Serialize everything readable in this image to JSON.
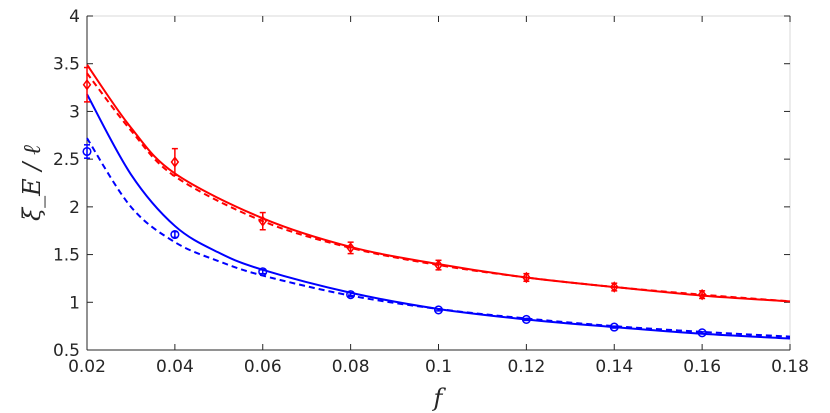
{
  "chart_data": {
    "type": "line",
    "xlabel": "f",
    "ylabel": "ξ_E / ℓ",
    "xlim": [
      0.02,
      0.18
    ],
    "ylim": [
      0.5,
      4
    ],
    "xticks": [
      0.02,
      0.04,
      0.06,
      0.08,
      0.1,
      0.12,
      0.14,
      0.16,
      0.18
    ],
    "xtick_labels": [
      "0.02",
      "0.04",
      "0.06",
      "0.08",
      "0.1",
      "0.12",
      "0.14",
      "0.16",
      "0.18"
    ],
    "yticks": [
      0.5,
      1,
      1.5,
      2,
      2.5,
      3,
      3.5,
      4
    ],
    "ytick_labels": [
      "0.5",
      "1",
      "1.5",
      "2",
      "2.5",
      "3",
      "3.5",
      "4"
    ],
    "grid": false,
    "legend": "none",
    "series": [
      {
        "color": "#ff0000",
        "marker": "diamond",
        "points": [
          {
            "x": 0.02,
            "y": 3.28,
            "err": 0.18
          },
          {
            "x": 0.04,
            "y": 2.47,
            "err": 0.14
          },
          {
            "x": 0.06,
            "y": 1.85,
            "err": 0.09
          },
          {
            "x": 0.08,
            "y": 1.57,
            "err": 0.06
          },
          {
            "x": 0.1,
            "y": 1.39,
            "err": 0.05
          },
          {
            "x": 0.12,
            "y": 1.26,
            "err": 0.04
          },
          {
            "x": 0.14,
            "y": 1.16,
            "err": 0.04
          },
          {
            "x": 0.16,
            "y": 1.08,
            "err": 0.04
          }
        ],
        "solid_fit": [
          [
            0.02,
            3.49
          ],
          [
            0.03,
            2.83
          ],
          [
            0.04,
            2.35
          ],
          [
            0.06,
            1.88
          ],
          [
            0.08,
            1.58
          ],
          [
            0.1,
            1.4
          ],
          [
            0.12,
            1.26
          ],
          [
            0.14,
            1.16
          ],
          [
            0.16,
            1.07
          ],
          [
            0.18,
            1.01
          ]
        ],
        "dashed_fit": [
          [
            0.02,
            3.4
          ],
          [
            0.03,
            2.8
          ],
          [
            0.04,
            2.32
          ],
          [
            0.06,
            1.85
          ],
          [
            0.08,
            1.57
          ],
          [
            0.1,
            1.39
          ],
          [
            0.12,
            1.26
          ],
          [
            0.14,
            1.16
          ],
          [
            0.16,
            1.08
          ],
          [
            0.18,
            1.01
          ]
        ]
      },
      {
        "color": "#0000ff",
        "marker": "circle",
        "points": [
          {
            "x": 0.02,
            "y": 2.58,
            "err": 0.07
          },
          {
            "x": 0.04,
            "y": 1.71,
            "err": 0.03
          },
          {
            "x": 0.06,
            "y": 1.32,
            "err": 0.02
          },
          {
            "x": 0.08,
            "y": 1.08,
            "err": 0.02
          },
          {
            "x": 0.1,
            "y": 0.92,
            "err": 0.01
          },
          {
            "x": 0.12,
            "y": 0.82,
            "err": 0.01
          },
          {
            "x": 0.14,
            "y": 0.74,
            "err": 0.01
          },
          {
            "x": 0.16,
            "y": 0.68,
            "err": 0.01
          }
        ],
        "solid_fit": [
          [
            0.02,
            3.18
          ],
          [
            0.03,
            2.34
          ],
          [
            0.04,
            1.8
          ],
          [
            0.05,
            1.52
          ],
          [
            0.06,
            1.34
          ],
          [
            0.08,
            1.1
          ],
          [
            0.1,
            0.93
          ],
          [
            0.12,
            0.82
          ],
          [
            0.14,
            0.74
          ],
          [
            0.16,
            0.67
          ],
          [
            0.18,
            0.62
          ]
        ],
        "dashed_fit": [
          [
            0.02,
            2.72
          ],
          [
            0.03,
            2.0
          ],
          [
            0.04,
            1.63
          ],
          [
            0.05,
            1.43
          ],
          [
            0.06,
            1.28
          ],
          [
            0.08,
            1.07
          ],
          [
            0.1,
            0.93
          ],
          [
            0.12,
            0.83
          ],
          [
            0.14,
            0.75
          ],
          [
            0.16,
            0.69
          ],
          [
            0.18,
            0.64
          ]
        ]
      }
    ]
  }
}
